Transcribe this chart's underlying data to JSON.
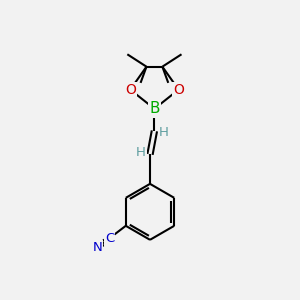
{
  "bg_color": "#f2f2f2",
  "bond_color": "#000000",
  "bond_width": 1.5,
  "atom_colors": {
    "C": "#0000cc",
    "H": "#5f9ea0",
    "N": "#0000cc",
    "O": "#cc0000",
    "B": "#00aa00"
  },
  "scale": 1.0
}
